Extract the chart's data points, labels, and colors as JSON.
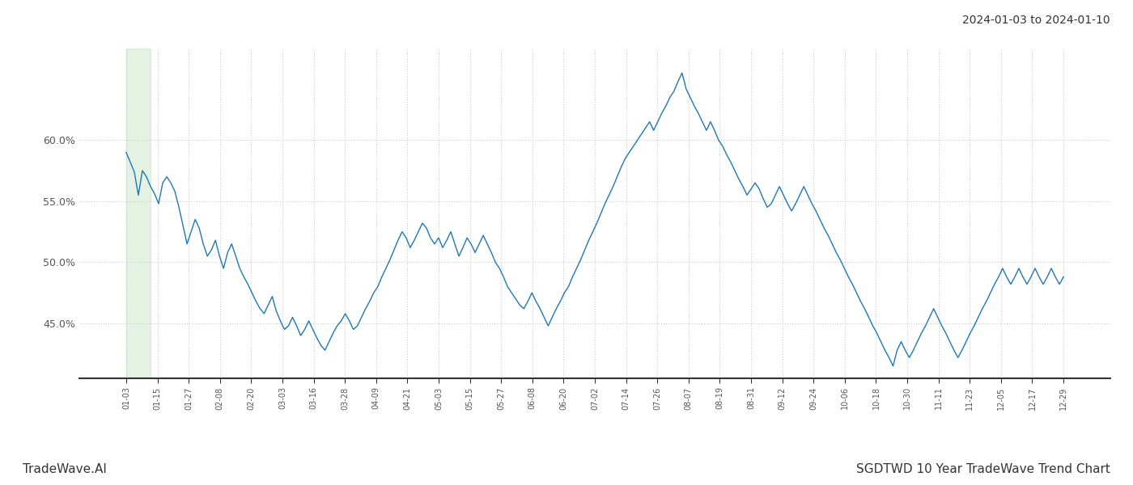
{
  "title_right": "2024-01-03 to 2024-01-10",
  "footer_left": "TradeWave.AI",
  "footer_right": "SGDTWD 10 Year TradeWave Trend Chart",
  "line_color": "#1f77b4",
  "highlight_color": "#c8e6c9",
  "highlight_alpha": 0.5,
  "background_color": "#ffffff",
  "grid_color": "#cccccc",
  "grid_style": ":",
  "ylim": [
    0.405,
    0.675
  ],
  "yticks": [
    0.45,
    0.5,
    0.55,
    0.6
  ],
  "ytick_labels": [
    "45.0%",
    "50.0%",
    "55.0%",
    "60.0%"
  ],
  "x_labels": [
    "01-03",
    "01-15",
    "01-27",
    "02-08",
    "02-20",
    "03-03",
    "03-16",
    "03-28",
    "04-09",
    "04-21",
    "05-03",
    "05-15",
    "05-27",
    "06-08",
    "06-20",
    "07-02",
    "07-14",
    "07-26",
    "08-07",
    "08-19",
    "08-31",
    "09-12",
    "09-24",
    "10-06",
    "10-18",
    "10-30",
    "11-11",
    "11-23",
    "12-05",
    "12-17",
    "12-29"
  ],
  "values": [
    0.59,
    0.582,
    0.574,
    0.555,
    0.575,
    0.57,
    0.562,
    0.556,
    0.548,
    0.565,
    0.57,
    0.565,
    0.558,
    0.545,
    0.53,
    0.515,
    0.525,
    0.535,
    0.528,
    0.515,
    0.505,
    0.51,
    0.518,
    0.505,
    0.495,
    0.508,
    0.515,
    0.505,
    0.495,
    0.488,
    0.482,
    0.475,
    0.468,
    0.462,
    0.458,
    0.465,
    0.472,
    0.46,
    0.452,
    0.445,
    0.448,
    0.455,
    0.448,
    0.44,
    0.445,
    0.452,
    0.445,
    0.438,
    0.432,
    0.428,
    0.435,
    0.442,
    0.448,
    0.452,
    0.458,
    0.452,
    0.445,
    0.448,
    0.455,
    0.462,
    0.468,
    0.475,
    0.48,
    0.488,
    0.495,
    0.502,
    0.51,
    0.518,
    0.525,
    0.52,
    0.512,
    0.518,
    0.525,
    0.532,
    0.528,
    0.52,
    0.515,
    0.52,
    0.512,
    0.518,
    0.525,
    0.515,
    0.505,
    0.512,
    0.52,
    0.515,
    0.508,
    0.515,
    0.522,
    0.515,
    0.508,
    0.5,
    0.495,
    0.488,
    0.48,
    0.475,
    0.47,
    0.465,
    0.462,
    0.468,
    0.475,
    0.468,
    0.462,
    0.455,
    0.448,
    0.455,
    0.462,
    0.468,
    0.475,
    0.48,
    0.488,
    0.495,
    0.502,
    0.51,
    0.518,
    0.525,
    0.532,
    0.54,
    0.548,
    0.555,
    0.562,
    0.57,
    0.578,
    0.585,
    0.59,
    0.595,
    0.6,
    0.605,
    0.61,
    0.615,
    0.608,
    0.615,
    0.622,
    0.628,
    0.635,
    0.64,
    0.648,
    0.655,
    0.642,
    0.635,
    0.628,
    0.622,
    0.615,
    0.608,
    0.615,
    0.608,
    0.6,
    0.595,
    0.588,
    0.582,
    0.575,
    0.568,
    0.562,
    0.555,
    0.56,
    0.565,
    0.56,
    0.552,
    0.545,
    0.548,
    0.555,
    0.562,
    0.555,
    0.548,
    0.542,
    0.548,
    0.555,
    0.562,
    0.555,
    0.548,
    0.542,
    0.535,
    0.528,
    0.522,
    0.515,
    0.508,
    0.502,
    0.495,
    0.488,
    0.482,
    0.475,
    0.468,
    0.462,
    0.455,
    0.448,
    0.442,
    0.435,
    0.428,
    0.422,
    0.415,
    0.428,
    0.435,
    0.428,
    0.422,
    0.428,
    0.435,
    0.442,
    0.448,
    0.455,
    0.462,
    0.455,
    0.448,
    0.442,
    0.435,
    0.428,
    0.422,
    0.428,
    0.435,
    0.442,
    0.448,
    0.455,
    0.462,
    0.468,
    0.475,
    0.482,
    0.488,
    0.495,
    0.488,
    0.482,
    0.488,
    0.495,
    0.488,
    0.482,
    0.488,
    0.495,
    0.488,
    0.482,
    0.488,
    0.495,
    0.488,
    0.482,
    0.488
  ]
}
